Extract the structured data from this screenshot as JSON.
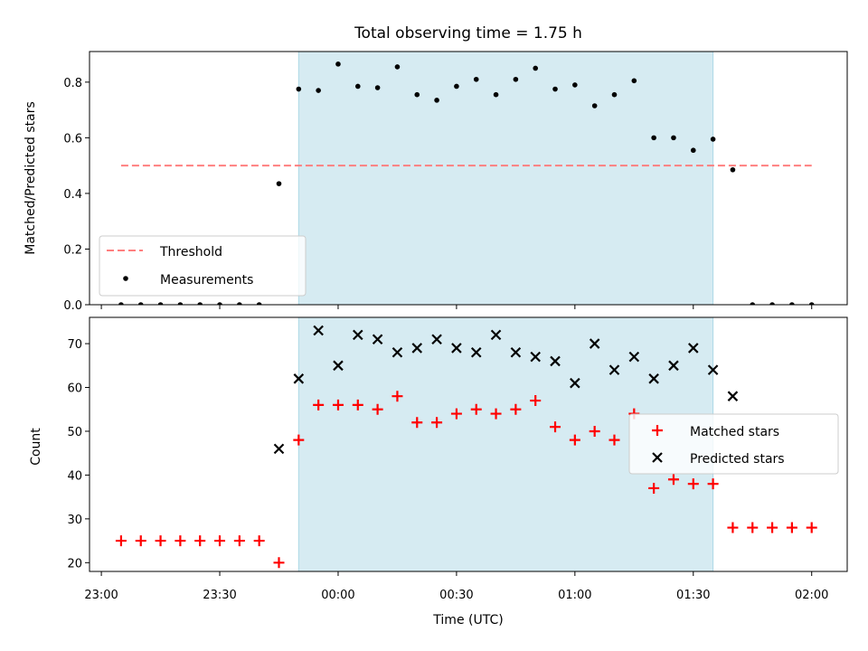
{
  "chart_data": [
    {
      "type": "scatter",
      "title": "Total observing time = 1.75 h",
      "ylabel": "Matched/Predicted stars",
      "xlabel": "",
      "ylim": [
        0,
        0.91
      ],
      "yticks": [
        0.0,
        0.2,
        0.4,
        0.6,
        0.8
      ],
      "ytick_labels": [
        "0.0",
        "0.2",
        "0.4",
        "0.6",
        "0.8"
      ],
      "legend_position": "lower-left",
      "highlight_span": [
        "23:50",
        "01:35"
      ],
      "highlight_color": "#add8e6",
      "threshold": {
        "name": "Threshold",
        "y": 0.5,
        "x_range": [
          "23:05",
          "02:00"
        ],
        "color": "#ff7f7f"
      },
      "series": [
        {
          "name": "Measurements",
          "color": "#000000",
          "x": [
            "23:05",
            "23:10",
            "23:15",
            "23:20",
            "23:25",
            "23:30",
            "23:35",
            "23:40",
            "23:45",
            "23:50",
            "23:55",
            "00:00",
            "00:05",
            "00:10",
            "00:15",
            "00:20",
            "00:25",
            "00:30",
            "00:35",
            "00:40",
            "00:45",
            "00:50",
            "00:55",
            "01:00",
            "01:05",
            "01:10",
            "01:15",
            "01:20",
            "01:25",
            "01:30",
            "01:35",
            "01:40",
            "01:45",
            "01:50",
            "01:55",
            "02:00"
          ],
          "y": [
            0.0,
            0.0,
            0.0,
            0.0,
            0.0,
            0.0,
            0.0,
            0.0,
            0.435,
            0.775,
            0.77,
            0.865,
            0.785,
            0.78,
            0.855,
            0.755,
            0.735,
            0.785,
            0.81,
            0.755,
            0.81,
            0.85,
            0.775,
            0.79,
            0.715,
            0.755,
            0.805,
            0.6,
            0.6,
            0.555,
            0.595,
            0.485,
            0.0,
            0.0,
            0.0,
            0.0
          ]
        }
      ]
    },
    {
      "type": "scatter",
      "title": "",
      "xlabel": "Time (UTC)",
      "ylabel": "Count",
      "ylim": [
        18,
        76
      ],
      "yticks": [
        20,
        30,
        40,
        50,
        60,
        70
      ],
      "ytick_labels": [
        "20",
        "30",
        "40",
        "50",
        "60",
        "70"
      ],
      "xlim": [
        "22:57",
        "02:09"
      ],
      "xticks": [
        "23:00",
        "23:30",
        "00:00",
        "00:30",
        "01:00",
        "01:30",
        "02:00"
      ],
      "legend_position": "center-right",
      "highlight_span": [
        "23:50",
        "01:35"
      ],
      "highlight_color": "#add8e6",
      "series": [
        {
          "name": "Matched stars",
          "marker": "+",
          "color": "#ff0000",
          "x": [
            "23:05",
            "23:10",
            "23:15",
            "23:20",
            "23:25",
            "23:30",
            "23:35",
            "23:40",
            "23:45",
            "23:50",
            "23:55",
            "00:00",
            "00:05",
            "00:10",
            "00:15",
            "00:20",
            "00:25",
            "00:30",
            "00:35",
            "00:40",
            "00:45",
            "00:50",
            "00:55",
            "01:00",
            "01:05",
            "01:10",
            "01:15",
            "01:20",
            "01:25",
            "01:30",
            "01:35",
            "01:40",
            "01:45",
            "01:50",
            "01:55",
            "02:00"
          ],
          "y": [
            25,
            25,
            25,
            25,
            25,
            25,
            25,
            25,
            20,
            48,
            56,
            56,
            56,
            55,
            58,
            52,
            52,
            54,
            55,
            54,
            55,
            57,
            51,
            48,
            50,
            48,
            54,
            37,
            39,
            38,
            38,
            28,
            28,
            28,
            28,
            28
          ]
        },
        {
          "name": "Predicted stars",
          "marker": "x",
          "color": "#000000",
          "x": [
            "23:45",
            "23:50",
            "23:55",
            "00:00",
            "00:05",
            "00:10",
            "00:15",
            "00:20",
            "00:25",
            "00:30",
            "00:35",
            "00:40",
            "00:45",
            "00:50",
            "00:55",
            "01:00",
            "01:05",
            "01:10",
            "01:15",
            "01:20",
            "01:25",
            "01:30",
            "01:35",
            "01:40"
          ],
          "y": [
            46,
            62,
            73,
            65,
            72,
            71,
            68,
            69,
            71,
            69,
            68,
            72,
            68,
            67,
            66,
            61,
            70,
            64,
            67,
            62,
            65,
            69,
            64,
            58
          ]
        }
      ]
    }
  ]
}
